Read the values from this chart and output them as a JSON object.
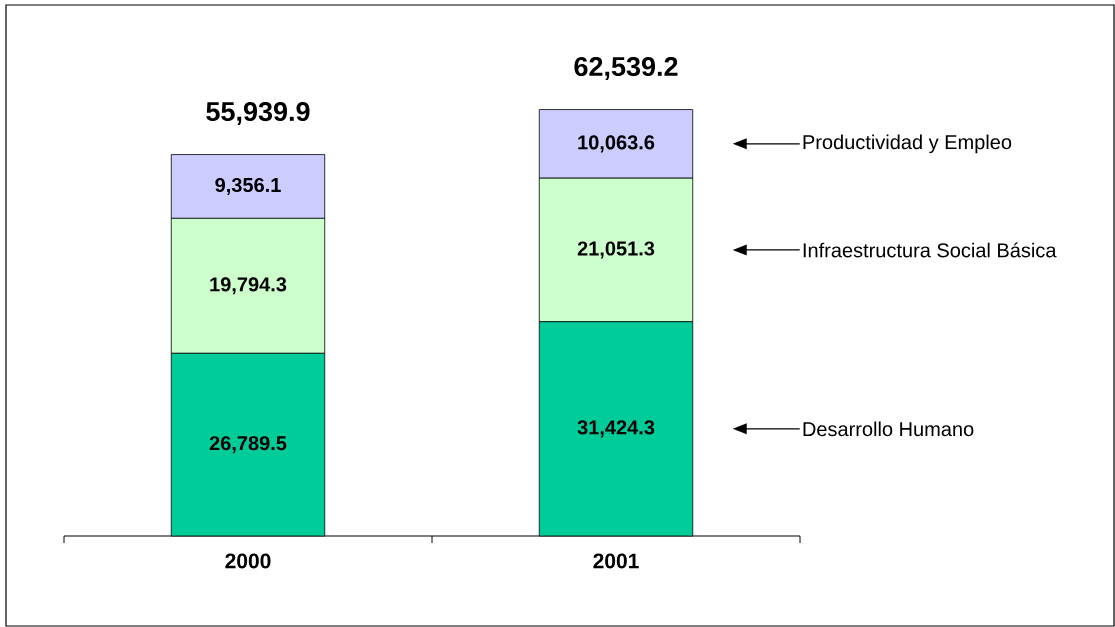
{
  "chart_data": {
    "type": "bar",
    "stacked": true,
    "categories": [
      "2000",
      "2001"
    ],
    "series": [
      {
        "name": "Desarrollo  Humano",
        "color": "#00cc99",
        "values": [
          26789.5,
          31424.3
        ],
        "value_labels": [
          "26,789.5",
          "31,424.3"
        ]
      },
      {
        "name": "Infraestructura Social Básica",
        "color": "#ccffcc",
        "values": [
          19794.3,
          21051.3
        ],
        "value_labels": [
          "19,794.3",
          "21,051.3"
        ]
      },
      {
        "name": "Productividad y Empleo",
        "color": "#ccccff",
        "values": [
          9356.1,
          10063.6
        ],
        "value_labels": [
          "9,356.1",
          "10,063.6"
        ]
      }
    ],
    "totals": [
      "55,939.9",
      "62,539.2"
    ],
    "legend": "right"
  }
}
